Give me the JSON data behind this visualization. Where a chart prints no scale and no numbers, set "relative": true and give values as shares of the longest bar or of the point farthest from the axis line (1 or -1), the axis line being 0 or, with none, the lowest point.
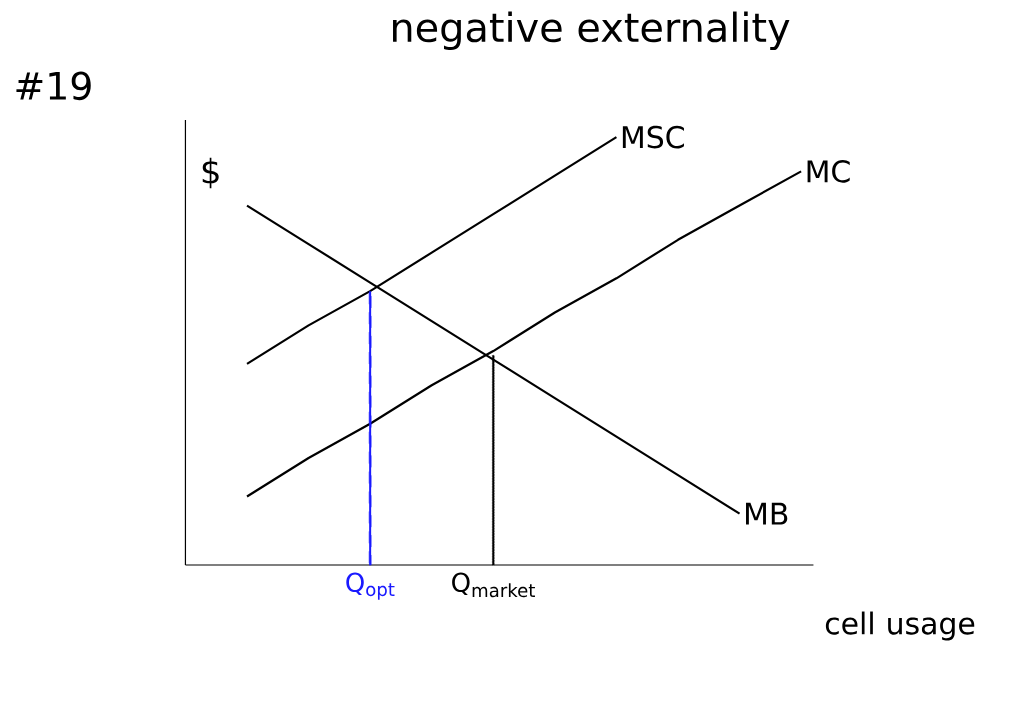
{
  "chart_data": {
    "type": "line",
    "relative": true,
    "title": "negative externality",
    "ylabel": "$",
    "xlabel": "cell usage",
    "annotations": [
      "#19"
    ],
    "grid": false,
    "categories": [
      null,
      null,
      "Q$_{opt}$",
      null,
      "Q$_{market}$",
      null,
      null,
      null,
      null,
      null
    ],
    "series": [
      {
        "name": "MSC",
        "color": "#000000",
        "values": [
          0.47,
          0.56,
          0.64,
          0.73,
          0.82,
          0.91,
          1.0,
          null,
          null,
          null
        ]
      },
      {
        "name": "MC",
        "color": "#000000",
        "values": [
          0.16,
          0.25,
          0.33,
          0.42,
          0.5,
          0.59,
          0.67,
          0.76,
          0.84,
          0.92
        ]
      },
      {
        "name": "MB",
        "color": "#000000",
        "values": [
          0.84,
          0.75,
          0.66,
          0.57,
          0.48,
          0.39,
          0.3,
          0.21,
          0.12,
          null
        ]
      },
      {
        "type": "bar",
        "color": "#1a1aff",
        "line_style": "dashed",
        "values": [
          null,
          null,
          0.64,
          null,
          null,
          null,
          null,
          null,
          null,
          null
        ]
      },
      {
        "type": "bar",
        "color": "#000000",
        "line_style": "dotted",
        "values": [
          null,
          null,
          null,
          null,
          0.49,
          null,
          null,
          null,
          null,
          null
        ]
      }
    ]
  }
}
